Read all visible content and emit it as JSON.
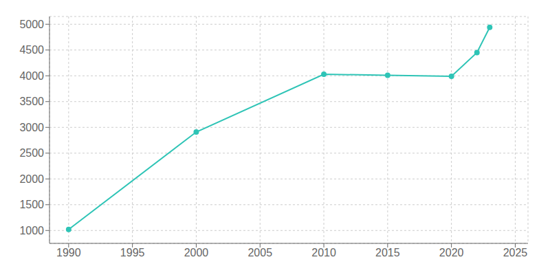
{
  "chart_data": {
    "type": "line",
    "x": [
      1990,
      2000,
      2010,
      2015,
      2020,
      2022,
      2023
    ],
    "values": [
      1020,
      2910,
      4030,
      4010,
      3990,
      4450,
      4940
    ],
    "color": "#2EC4B6",
    "marker": "circle",
    "xlim": [
      1988.5,
      2026
    ],
    "ylim": [
      750,
      5150
    ],
    "xticks": [
      1990,
      1995,
      2000,
      2005,
      2010,
      2015,
      2020,
      2025
    ],
    "yticks": [
      1000,
      1500,
      2000,
      2500,
      3000,
      3500,
      4000,
      4500,
      5000
    ],
    "grid": true
  }
}
